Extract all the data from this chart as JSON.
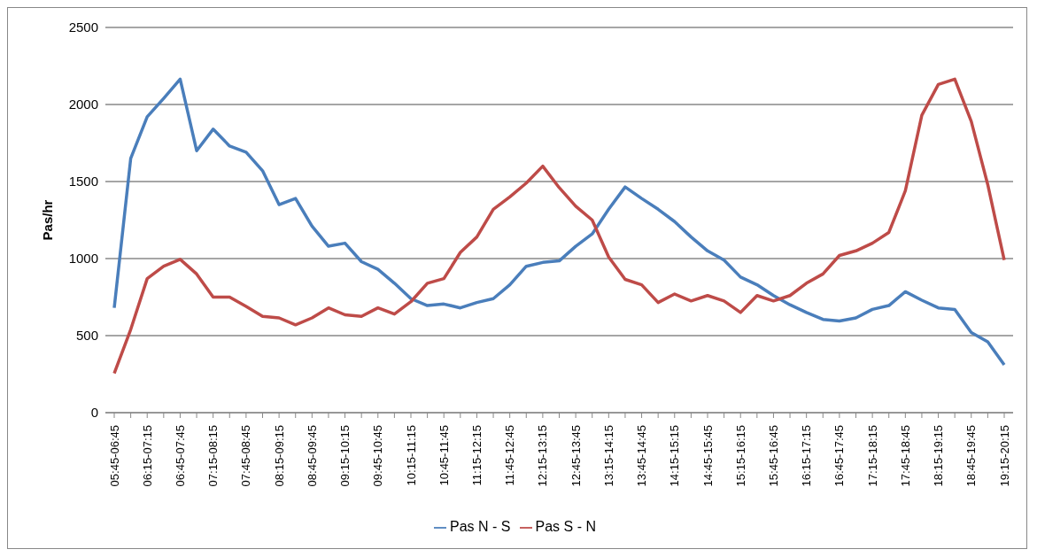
{
  "chart_data": {
    "type": "line",
    "ylabel": "Pas/hr",
    "categories": [
      "05:45-06:45",
      null,
      "06:15-07:15",
      null,
      "06:45-07:45",
      null,
      "07:15-08:15",
      null,
      "07:45-08:45",
      null,
      "08:15-09:15",
      null,
      "08:45-09:45",
      null,
      "09:15-10:15",
      null,
      "09:45-10:45",
      null,
      "10:15-11:15",
      null,
      "10:45-11:45",
      null,
      "11:15-12:15",
      null,
      "11:45-12:45",
      null,
      "12:15-13:15",
      null,
      "12:45-13:45",
      null,
      "13:15-14:15",
      null,
      "13:45-14:45",
      null,
      "14:15-15:15",
      null,
      "14:45-15:45",
      null,
      "15:15-16:15",
      null,
      "15:45-16:45",
      null,
      "16:15-17:15",
      null,
      "16:45-17:45",
      null,
      "17:15-18:15",
      null,
      "17:45-18:45",
      null,
      "18:15-19:15",
      null,
      "18:45-19:45",
      null,
      "19:15-20:15"
    ],
    "series": [
      {
        "name": "Pas N - S",
        "color": "#4a7ebb",
        "values": [
          680,
          1650,
          1920,
          2040,
          2165,
          1700,
          1840,
          1730,
          1690,
          1570,
          1350,
          1390,
          1210,
          1080,
          1100,
          980,
          930,
          840,
          740,
          695,
          705,
          680,
          715,
          740,
          830,
          950,
          975,
          985,
          1080,
          1160,
          1320,
          1465,
          1390,
          1320,
          1240,
          1140,
          1050,
          990,
          880,
          830,
          760,
          700,
          650,
          605,
          595,
          615,
          670,
          695,
          785,
          730,
          680,
          670,
          520,
          460,
          310
        ]
      },
      {
        "name": "Pas S - N",
        "color": "#be4b48",
        "values": [
          255,
          540,
          870,
          950,
          995,
          900,
          750,
          750,
          690,
          625,
          615,
          570,
          615,
          680,
          635,
          625,
          680,
          640,
          720,
          840,
          870,
          1040,
          1140,
          1320,
          1400,
          1490,
          1600,
          1460,
          1340,
          1250,
          1010,
          865,
          830,
          715,
          770,
          725,
          760,
          725,
          650,
          760,
          725,
          760,
          840,
          900,
          1020,
          1050,
          1100,
          1170,
          1440,
          1930,
          2130,
          2165,
          1890,
          1480,
          990
        ]
      }
    ],
    "ylim": [
      0,
      2500
    ],
    "yticks": [
      0,
      500,
      1000,
      1500,
      2000,
      2500
    ],
    "grid": "y",
    "legend": "bottom",
    "marker": "none",
    "line_style": "solid"
  }
}
